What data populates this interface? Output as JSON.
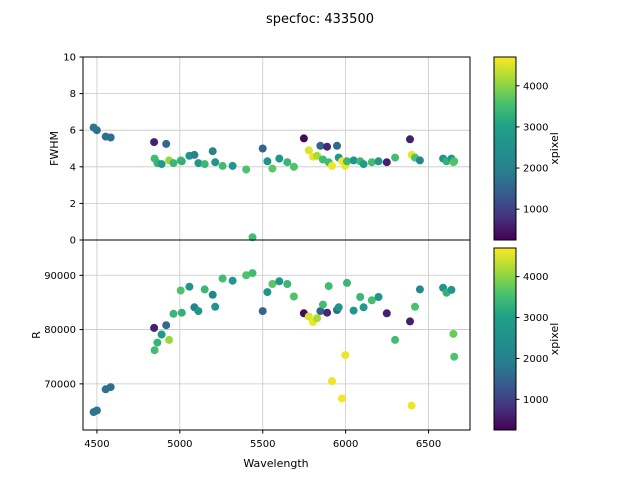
{
  "chart_data": {
    "type": "scatter",
    "title": "specfoc: 433500",
    "xlabel": "Wavelength",
    "xlim": [
      4416,
      6750
    ],
    "xticks": [
      4500,
      5000,
      5500,
      6000,
      6500
    ],
    "grid": true,
    "grid_color": "#c8c8c8",
    "spine_color": "#000000",
    "background_color": "#ffffff",
    "colormap": "viridis",
    "colormap_stops": [
      "#440154",
      "#46327e",
      "#365c8d",
      "#277f8e",
      "#21918c",
      "#1fa187",
      "#4ac16d",
      "#a0da39",
      "#fde725"
    ],
    "subplots": [
      {
        "ylabel": "FWHM",
        "ylim": [
          0,
          10
        ],
        "yticks": [
          0,
          2,
          4,
          6,
          8,
          10
        ],
        "value_key": "fwhm"
      },
      {
        "ylabel": "R",
        "ylim": [
          61500,
          96500
        ],
        "yticks": [
          70000,
          80000,
          90000
        ],
        "value_key": "r"
      }
    ],
    "colorbar": {
      "label": "xpixel",
      "ticks": [
        1000,
        2000,
        3000,
        4000
      ],
      "vmin": 250,
      "vmax": 4700
    },
    "columns": [
      "wavelength",
      "fwhm",
      "r",
      "xpixel"
    ],
    "points": [
      [
        4480,
        6.15,
        64800,
        1800
      ],
      [
        4500,
        6.0,
        65100,
        1750
      ],
      [
        4553,
        5.65,
        69000,
        1700
      ],
      [
        4583,
        5.6,
        69400,
        1680
      ],
      [
        4845,
        5.35,
        80300,
        600
      ],
      [
        4848,
        4.45,
        76200,
        3500
      ],
      [
        4865,
        4.2,
        77600,
        3350
      ],
      [
        4890,
        4.15,
        79100,
        2800
      ],
      [
        4918,
        5.25,
        80800,
        1600
      ],
      [
        4935,
        4.35,
        78100,
        4100
      ],
      [
        4962,
        4.2,
        82900,
        3400
      ],
      [
        5005,
        4.35,
        87200,
        3600
      ],
      [
        5012,
        4.3,
        83100,
        3300
      ],
      [
        5058,
        4.6,
        87900,
        2600
      ],
      [
        5088,
        4.65,
        84100,
        2000
      ],
      [
        5112,
        4.2,
        83400,
        2700
      ],
      [
        5150,
        4.15,
        87400,
        3400
      ],
      [
        5198,
        4.85,
        86400,
        2100
      ],
      [
        5213,
        4.25,
        84200,
        2600
      ],
      [
        5258,
        4.05,
        89400,
        3500
      ],
      [
        5318,
        4.05,
        89000,
        2700
      ],
      [
        5400,
        3.85,
        90000,
        3600
      ],
      [
        5438,
        0.15,
        90400,
        3500
      ],
      [
        5500,
        5.0,
        83400,
        1500
      ],
      [
        5528,
        4.3,
        86900,
        2600
      ],
      [
        5558,
        3.9,
        88400,
        3700
      ],
      [
        5600,
        4.45,
        88900,
        2700
      ],
      [
        5648,
        4.25,
        88400,
        3400
      ],
      [
        5688,
        4.0,
        86100,
        3600
      ],
      [
        5748,
        5.55,
        83000,
        350
      ],
      [
        5778,
        4.9,
        82400,
        4500
      ],
      [
        5803,
        4.55,
        81400,
        4600
      ],
      [
        5828,
        4.6,
        82100,
        4200
      ],
      [
        5848,
        5.15,
        83400,
        1500
      ],
      [
        5863,
        4.4,
        84600,
        3500
      ],
      [
        5888,
        5.1,
        83100,
        700
      ],
      [
        5898,
        4.25,
        88000,
        3500
      ],
      [
        5918,
        4.05,
        70500,
        4600
      ],
      [
        5948,
        5.15,
        83600,
        1600
      ],
      [
        5958,
        4.5,
        84100,
        2600
      ],
      [
        5978,
        4.3,
        67300,
        4650
      ],
      [
        5998,
        4.05,
        75300,
        4600
      ],
      [
        6008,
        4.3,
        88600,
        3400
      ],
      [
        6048,
        4.35,
        83500,
        2700
      ],
      [
        6088,
        4.3,
        86000,
        3400
      ],
      [
        6108,
        4.15,
        84100,
        2800
      ],
      [
        6158,
        4.25,
        85400,
        3500
      ],
      [
        6198,
        4.3,
        86000,
        2700
      ],
      [
        6248,
        4.25,
        83000,
        600
      ],
      [
        6298,
        4.5,
        78100,
        3500
      ],
      [
        6388,
        5.5,
        81500,
        600
      ],
      [
        6398,
        4.65,
        66000,
        4600
      ],
      [
        6418,
        4.5,
        84200,
        3600
      ],
      [
        6448,
        4.35,
        87400,
        2200
      ],
      [
        6588,
        4.45,
        87700,
        2500
      ],
      [
        6608,
        4.3,
        86800,
        3300
      ],
      [
        6638,
        4.45,
        87300,
        2600
      ],
      [
        6650,
        4.25,
        79200,
        3800
      ],
      [
        6655,
        4.3,
        75000,
        3600
      ]
    ]
  }
}
